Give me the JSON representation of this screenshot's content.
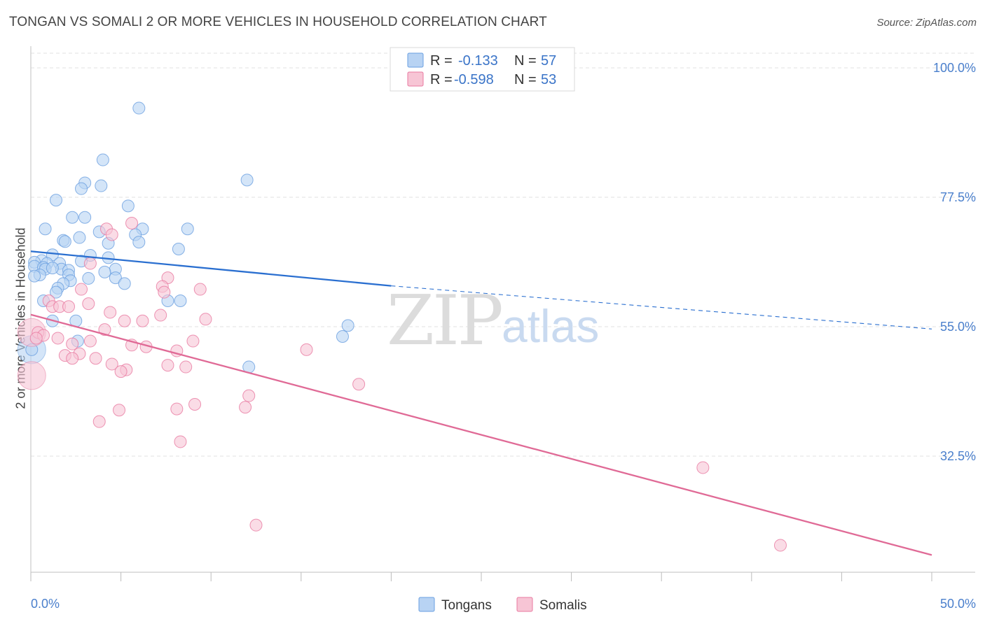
{
  "title": "TONGAN VS SOMALI 2 OR MORE VEHICLES IN HOUSEHOLD CORRELATION CHART",
  "source": "Source: ZipAtlas.com",
  "watermark": {
    "zip": "ZIP",
    "atlas": "atlas"
  },
  "colors": {
    "tongans": "#6a9fe0",
    "tongans_fill": "#b8d3f3",
    "somalis": "#e879a0",
    "somalis_fill": "#f7c5d5",
    "tick": "#4a7fcc"
  },
  "legend": {
    "rows": [
      {
        "r_label": "R =",
        "r_value": "-0.133",
        "n_label": "N =",
        "n_value": "57"
      },
      {
        "r_label": "R =",
        "r_value": "-0.598",
        "n_label": "N =",
        "n_value": "53"
      }
    ]
  },
  "chart_data": {
    "type": "scatter",
    "title": "TONGAN VS SOMALI 2 OR MORE VEHICLES IN HOUSEHOLD CORRELATION CHART",
    "xlabel": "",
    "ylabel": "2 or more Vehicles in Household",
    "xlim": [
      0,
      50
    ],
    "ylim": [
      10,
      102
    ],
    "x_tick_labels": [
      "0.0%",
      "50.0%"
    ],
    "y_ticks": [
      100,
      77.5,
      55,
      32.5
    ],
    "y_tick_labels": [
      "100.0%",
      "77.5%",
      "55.0%",
      "32.5%"
    ],
    "series": [
      {
        "name": "Tongans",
        "points": [
          [
            6,
            93
          ],
          [
            4,
            84
          ],
          [
            12,
            80.5
          ],
          [
            3,
            80
          ],
          [
            2.8,
            79
          ],
          [
            3.9,
            79.5
          ],
          [
            1.4,
            77
          ],
          [
            5.4,
            76
          ],
          [
            2.3,
            74
          ],
          [
            3,
            74
          ],
          [
            0.8,
            72
          ],
          [
            8.7,
            72
          ],
          [
            6.2,
            72
          ],
          [
            3.8,
            71.5
          ],
          [
            5.8,
            71
          ],
          [
            2.7,
            70.5
          ],
          [
            1.8,
            70
          ],
          [
            1.9,
            69.8
          ],
          [
            6,
            69.7
          ],
          [
            4.3,
            69.5
          ],
          [
            8.2,
            68.5
          ],
          [
            1.2,
            67.5
          ],
          [
            3.3,
            67.4
          ],
          [
            4.3,
            67
          ],
          [
            0.6,
            66.5
          ],
          [
            0.2,
            66.2
          ],
          [
            0.9,
            66
          ],
          [
            1.6,
            66
          ],
          [
            2.8,
            66.4
          ],
          [
            0.2,
            65.5
          ],
          [
            0.7,
            65.3
          ],
          [
            1.7,
            65
          ],
          [
            0.8,
            65
          ],
          [
            1.2,
            65.2
          ],
          [
            4.7,
            65
          ],
          [
            2.1,
            64.8
          ],
          [
            4.1,
            64.5
          ],
          [
            0.5,
            64
          ],
          [
            2.1,
            64
          ],
          [
            0.2,
            63.8
          ],
          [
            4.7,
            63.5
          ],
          [
            3.2,
            63.4
          ],
          [
            2.2,
            63
          ],
          [
            1.8,
            62.5
          ],
          [
            5.2,
            62.5
          ],
          [
            1.5,
            61.7
          ],
          [
            1.4,
            61
          ],
          [
            7.6,
            59.5
          ],
          [
            0.7,
            59.5
          ],
          [
            8.3,
            59.5
          ],
          [
            1.2,
            56
          ],
          [
            2.5,
            56
          ],
          [
            17.6,
            55.2
          ],
          [
            17.3,
            53.3
          ],
          [
            2.6,
            52.5
          ],
          [
            0.05,
            51
          ],
          [
            12.1,
            48
          ]
        ],
        "big_points": [
          [
            0.05,
            51
          ]
        ]
      },
      {
        "name": "Somalis",
        "points": [
          [
            5.6,
            73
          ],
          [
            4.2,
            72
          ],
          [
            4.5,
            71
          ],
          [
            3.3,
            66
          ],
          [
            7.6,
            63.5
          ],
          [
            7.3,
            62
          ],
          [
            2.8,
            61.5
          ],
          [
            9.4,
            61.5
          ],
          [
            7.4,
            61
          ],
          [
            1,
            59.5
          ],
          [
            3.2,
            59
          ],
          [
            1.2,
            58.5
          ],
          [
            1.6,
            58.5
          ],
          [
            2.1,
            58.5
          ],
          [
            4.4,
            57.5
          ],
          [
            7.2,
            57
          ],
          [
            9.7,
            56.3
          ],
          [
            5.2,
            56
          ],
          [
            6.2,
            56
          ],
          [
            0.4,
            54
          ],
          [
            4.1,
            54.5
          ],
          [
            0.7,
            53.5
          ],
          [
            1.5,
            53
          ],
          [
            0.3,
            53
          ],
          [
            3.3,
            52.5
          ],
          [
            9,
            52.5
          ],
          [
            2.3,
            52
          ],
          [
            5.6,
            51.8
          ],
          [
            6.4,
            51.5
          ],
          [
            15.3,
            51
          ],
          [
            8.1,
            50.8
          ],
          [
            2.7,
            50.3
          ],
          [
            1.9,
            50
          ],
          [
            2.3,
            49.5
          ],
          [
            3.6,
            49.5
          ],
          [
            4.5,
            48.5
          ],
          [
            7.6,
            48.3
          ],
          [
            8.6,
            48
          ],
          [
            5.3,
            47.5
          ],
          [
            5,
            47.2
          ],
          [
            18.2,
            45
          ],
          [
            12.1,
            43
          ],
          [
            9.1,
            41.5
          ],
          [
            11.9,
            41
          ],
          [
            8.1,
            40.7
          ],
          [
            4.9,
            40.5
          ],
          [
            3.8,
            38.5
          ],
          [
            8.3,
            35
          ],
          [
            37.3,
            30.5
          ],
          [
            12.5,
            20.5
          ],
          [
            41.6,
            17
          ]
        ],
        "big_points": [
          [
            0.05,
            46.5
          ],
          [
            0.05,
            54
          ]
        ]
      }
    ],
    "trend_lines": [
      {
        "series": "Tongans",
        "x": [
          0,
          20
        ],
        "y": [
          68.1,
          62.1
        ],
        "style": "solid"
      },
      {
        "series": "Tongans",
        "x": [
          20,
          50
        ],
        "y": [
          62.1,
          54.6
        ],
        "style": "dashed"
      },
      {
        "series": "Somalis",
        "x": [
          0,
          50
        ],
        "y": [
          57.1,
          15.3
        ],
        "style": "solid"
      }
    ],
    "legend_position": "top-center"
  }
}
